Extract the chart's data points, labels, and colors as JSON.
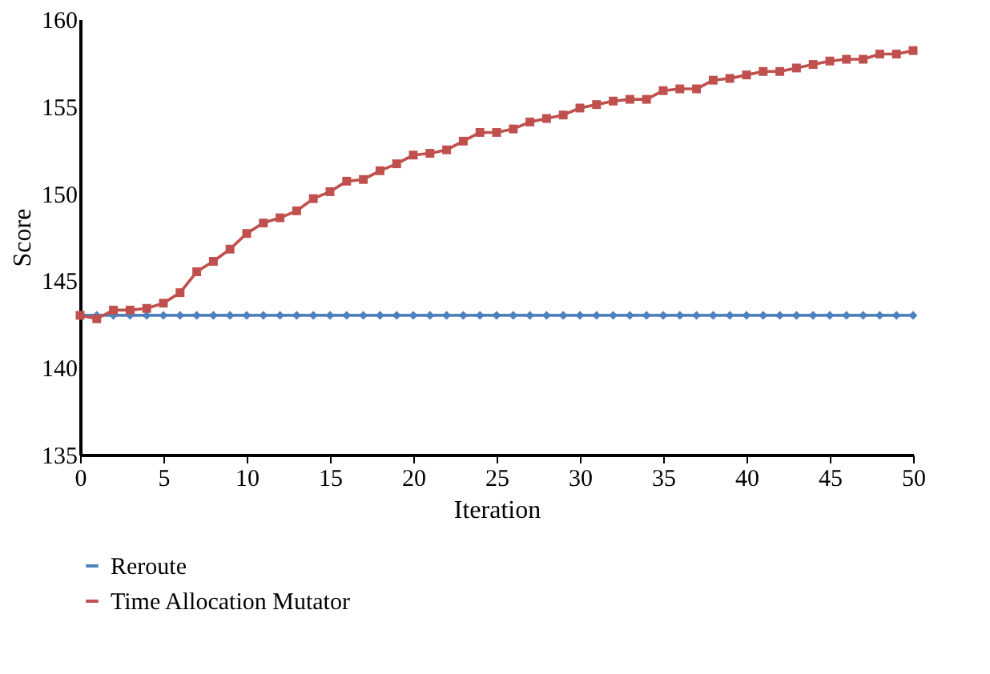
{
  "chart_data": {
    "type": "line",
    "xlabel": "Iteration",
    "ylabel": "Score",
    "x": [
      0,
      1,
      2,
      3,
      4,
      5,
      6,
      7,
      8,
      9,
      10,
      11,
      12,
      13,
      14,
      15,
      16,
      17,
      18,
      19,
      20,
      21,
      22,
      23,
      24,
      25,
      26,
      27,
      28,
      29,
      30,
      31,
      32,
      33,
      34,
      35,
      36,
      37,
      38,
      39,
      40,
      41,
      42,
      43,
      44,
      45,
      46,
      47,
      48,
      49,
      50
    ],
    "series": [
      {
        "name": "Reroute",
        "color": "#4f81bd",
        "marker": "diamond",
        "values": [
          143,
          143,
          143,
          143,
          143,
          143,
          143,
          143,
          143,
          143,
          143,
          143,
          143,
          143,
          143,
          143,
          143,
          143,
          143,
          143,
          143,
          143,
          143,
          143,
          143,
          143,
          143,
          143,
          143,
          143,
          143,
          143,
          143,
          143,
          143,
          143,
          143,
          143,
          143,
          143,
          143,
          143,
          143,
          143,
          143,
          143,
          143,
          143,
          143,
          143,
          143
        ]
      },
      {
        "name": "Time Allocation Mutator",
        "color": "#c0504d",
        "marker": "square",
        "values": [
          143.0,
          142.8,
          143.3,
          143.3,
          143.4,
          143.7,
          144.3,
          145.5,
          146.1,
          146.8,
          147.7,
          148.3,
          148.6,
          149.0,
          149.7,
          150.1,
          150.7,
          150.8,
          151.3,
          151.7,
          152.2,
          152.3,
          152.5,
          153.0,
          153.5,
          153.5,
          153.7,
          154.1,
          154.3,
          154.5,
          154.9,
          155.1,
          155.3,
          155.4,
          155.4,
          155.9,
          156.0,
          156.0,
          156.5,
          156.6,
          156.8,
          157.0,
          157.0,
          157.2,
          157.4,
          157.6,
          157.7,
          157.7,
          158.0,
          158.0,
          158.2
        ]
      }
    ],
    "xlim": [
      0,
      50
    ],
    "xticks": [
      0,
      5,
      10,
      15,
      20,
      25,
      30,
      35,
      40,
      45,
      50
    ],
    "ylim": [
      135,
      160
    ],
    "yticks": [
      135,
      140,
      145,
      150,
      155,
      160
    ],
    "grid": false,
    "legend": "bottom left",
    "line_style": "solid"
  }
}
